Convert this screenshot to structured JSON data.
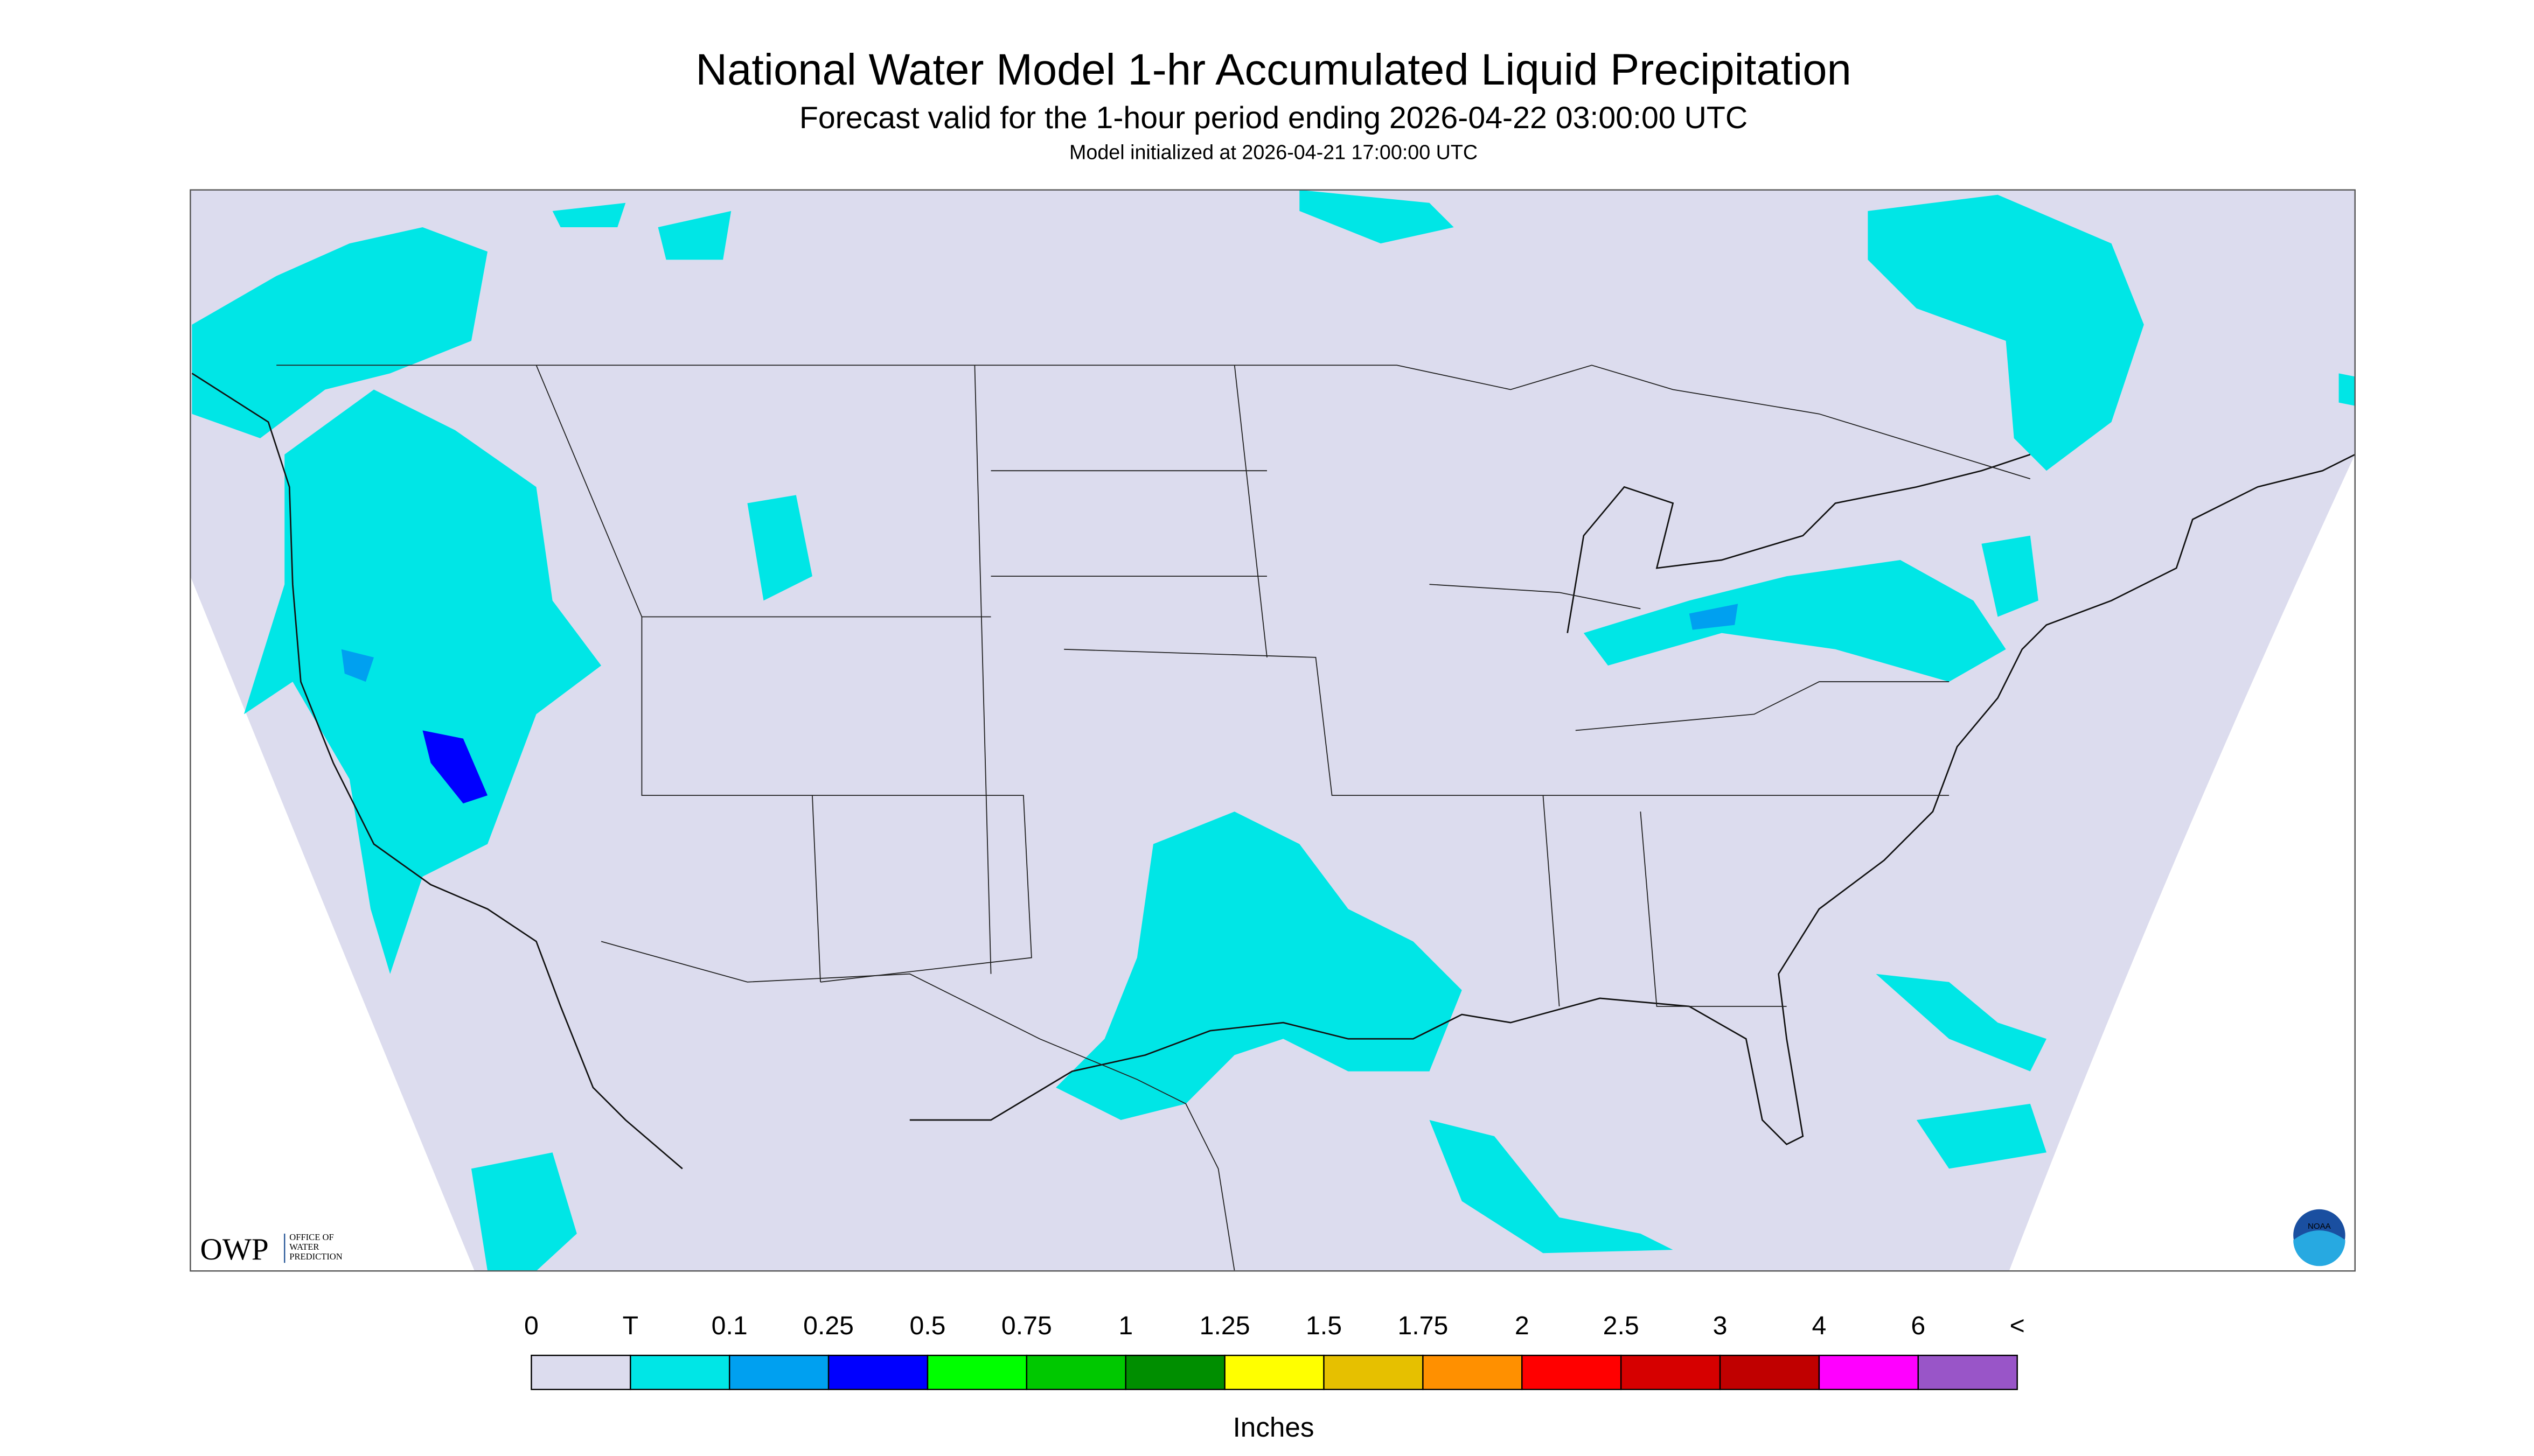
{
  "header": {
    "title": "National Water Model 1-hr Accumulated Liquid Precipitation",
    "subtitle": "Forecast valid for the 1-hour period ending 2026-04-22 03:00:00 UTC",
    "init": "Model initialized at 2026-04-21 17:00:00 UTC"
  },
  "legend": {
    "labels": [
      "0",
      "T",
      "0.1",
      "0.25",
      "0.5",
      "0.75",
      "1",
      "1.25",
      "1.5",
      "1.75",
      "2",
      "2.5",
      "3",
      "4",
      "6",
      "<"
    ],
    "colors": [
      "#dcdcee",
      "#00e6e6",
      "#00a0f0",
      "#0000ff",
      "#00ff00",
      "#00c800",
      "#008e00",
      "#ffff00",
      "#e6c000",
      "#ff9000",
      "#ff0000",
      "#d60000",
      "#c00000",
      "#ff00ff",
      "#9955c8"
    ],
    "unit": "Inches"
  },
  "logo": {
    "mark": "OWP",
    "lines": [
      "OFFICE OF",
      "WATER",
      "PREDICTION"
    ]
  },
  "agency": "NOAA"
}
